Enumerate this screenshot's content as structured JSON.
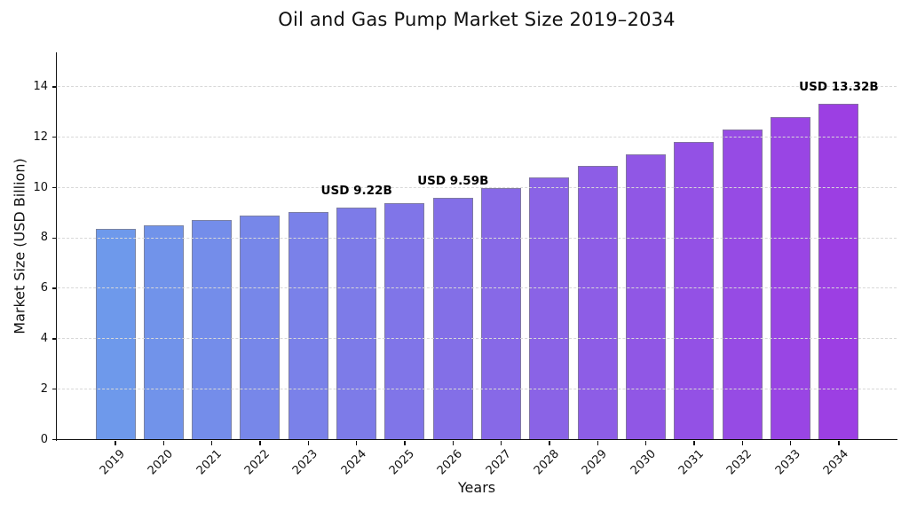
{
  "chart_data": {
    "type": "bar",
    "title": "Oil and Gas Pump Market Size 2019–2034",
    "xlabel": "Years",
    "ylabel": "Market Size (USD Billion)",
    "categories": [
      "2019",
      "2020",
      "2021",
      "2022",
      "2023",
      "2024",
      "2025",
      "2026",
      "2027",
      "2028",
      "2029",
      "2030",
      "2031",
      "2032",
      "2033",
      "2034"
    ],
    "values": [
      8.35,
      8.52,
      8.7,
      8.88,
      9.04,
      9.22,
      9.4,
      9.59,
      10.0,
      10.42,
      10.86,
      11.32,
      11.8,
      12.29,
      12.81,
      13.32
    ],
    "ylim": [
      0,
      15.4
    ],
    "yticks": [
      0,
      2,
      4,
      6,
      8,
      10,
      12,
      14
    ],
    "grid": "horizontal-dashed",
    "legend": "none",
    "annotations": [
      {
        "category": "2024",
        "text": "USD 9.22B"
      },
      {
        "category": "2026",
        "text": "USD 9.59B"
      },
      {
        "category": "2034",
        "text": "USD 13.32B"
      }
    ],
    "colors": {
      "bar_gradient_start": "#6E99EB",
      "bar_gradient_end": "#9C3FE3",
      "bar_edge": "#7d7d8c",
      "gridline": "#d8d8d8",
      "axis": "#111111",
      "background": "#ffffff",
      "text": "#111111"
    }
  }
}
